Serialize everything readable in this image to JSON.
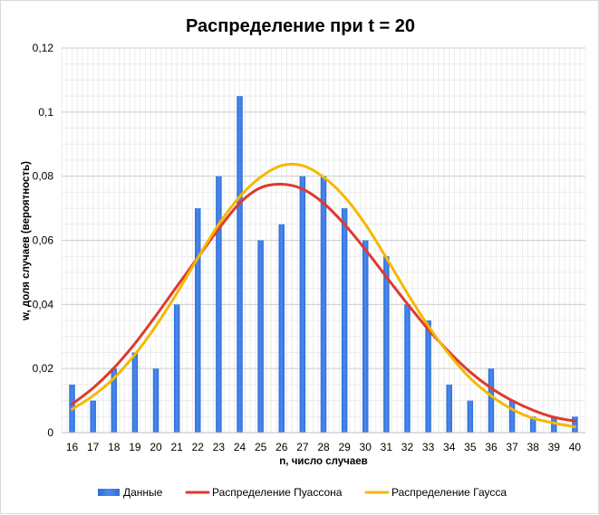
{
  "chart_data": {
    "type": "bar",
    "title": "Распределение при t = 20",
    "xlabel": "n, число случаев",
    "ylabel": "w, доля случаев (вероятность)",
    "categories": [
      "16",
      "17",
      "18",
      "19",
      "20",
      "21",
      "22",
      "23",
      "24",
      "25",
      "26",
      "27",
      "28",
      "29",
      "30",
      "31",
      "32",
      "33",
      "34",
      "35",
      "36",
      "37",
      "38",
      "39",
      "40"
    ],
    "ylim": [
      0,
      0.12
    ],
    "yticks": [
      0,
      0.02,
      0.04,
      0.06,
      0.08,
      0.1,
      0.12
    ],
    "ytick_labels": [
      "0",
      "0,02",
      "0,04",
      "0,06",
      "0,08",
      "0,1",
      "0,12"
    ],
    "grid": true,
    "legend_position": "bottom",
    "series": [
      {
        "name": "Данные",
        "kind": "bar",
        "color": "#3d7de4",
        "values": [
          0.015,
          0.01,
          0.02,
          0.025,
          0.02,
          0.04,
          0.07,
          0.08,
          0.105,
          0.06,
          0.065,
          0.08,
          0.08,
          0.07,
          0.06,
          0.055,
          0.04,
          0.035,
          0.015,
          0.01,
          0.02,
          0.01,
          0.005,
          0.005,
          0.005
        ]
      },
      {
        "name": "Распределение Пуассона",
        "kind": "line",
        "color": "#de3a2f",
        "values": [
          0.0089,
          0.0139,
          0.0202,
          0.0278,
          0.0365,
          0.0456,
          0.0546,
          0.0636,
          0.0716,
          0.0764,
          0.0775,
          0.076,
          0.0716,
          0.065,
          0.0571,
          0.0486,
          0.0402,
          0.0322,
          0.0251,
          0.0189,
          0.0139,
          0.01,
          0.007,
          0.0048,
          0.0036
        ]
      },
      {
        "name": "Распределение Гаусса",
        "kind": "line",
        "color": "#f5b800",
        "values": [
          0.0073,
          0.0115,
          0.017,
          0.0244,
          0.0333,
          0.0435,
          0.0545,
          0.065,
          0.0736,
          0.0797,
          0.0833,
          0.0833,
          0.0797,
          0.0736,
          0.065,
          0.0545,
          0.0435,
          0.0333,
          0.0244,
          0.017,
          0.0115,
          0.0073,
          0.0045,
          0.003,
          0.0018
        ]
      }
    ]
  }
}
